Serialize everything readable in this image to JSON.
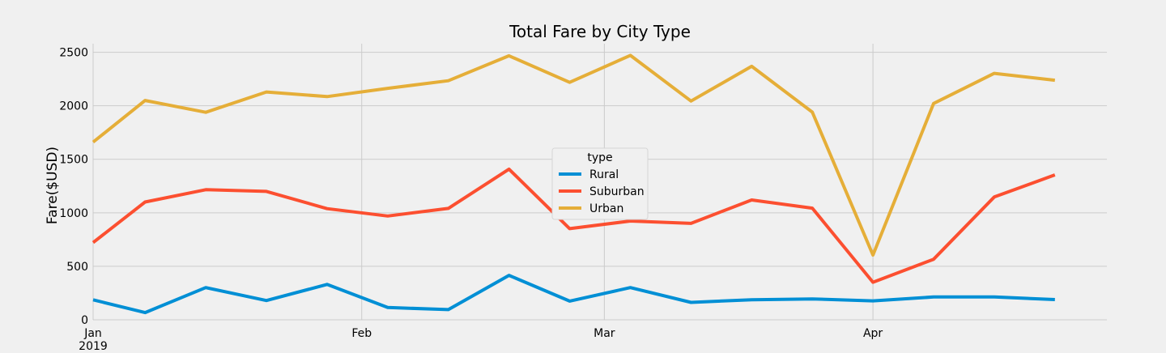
{
  "chart_data": {
    "type": "line",
    "title": "Total Fare by City Type",
    "xlabel": "",
    "ylabel": "Fare($USD)",
    "ylim": [
      0,
      2580
    ],
    "yticks": [
      0,
      500,
      1000,
      1500,
      2000,
      2500
    ],
    "x": [
      "2019-01-01",
      "2019-01-07",
      "2019-01-14",
      "2019-01-21",
      "2019-01-28",
      "2019-02-04",
      "2019-02-11",
      "2019-02-18",
      "2019-02-25",
      "2019-03-04",
      "2019-03-11",
      "2019-03-18",
      "2019-03-25",
      "2019-04-01",
      "2019-04-08",
      "2019-04-15",
      "2019-04-22"
    ],
    "xlim": [
      "2019-01-01",
      "2019-04-28"
    ],
    "xticks": [
      {
        "date": "2019-01-01",
        "label": "Jan",
        "sublabel": "2019"
      },
      {
        "date": "2019-02-01",
        "label": "Feb",
        "sublabel": ""
      },
      {
        "date": "2019-03-01",
        "label": "Mar",
        "sublabel": ""
      },
      {
        "date": "2019-04-01",
        "label": "Apr",
        "sublabel": ""
      }
    ],
    "grid": true,
    "legend_title": "type",
    "legend_position": "center",
    "series": [
      {
        "name": "Rural",
        "color": "#008fd5",
        "values": [
          187,
          67,
          301,
          180,
          331,
          115,
          95,
          415,
          175,
          301,
          163,
          188,
          195,
          177,
          213,
          213,
          189
        ]
      },
      {
        "name": "Suburban",
        "color": "#fc4f30",
        "values": [
          722,
          1101,
          1216,
          1200,
          1039,
          970,
          1041,
          1408,
          852,
          923,
          901,
          1120,
          1043,
          351,
          566,
          1148,
          1354
        ]
      },
      {
        "name": "Urban",
        "color": "#e5ae38",
        "values": [
          1661,
          2050,
          1939,
          2129,
          2086,
          2163,
          2234,
          2467,
          2219,
          2471,
          2044,
          2369,
          1941,
          605,
          2022,
          2303,
          2239
        ]
      }
    ]
  }
}
